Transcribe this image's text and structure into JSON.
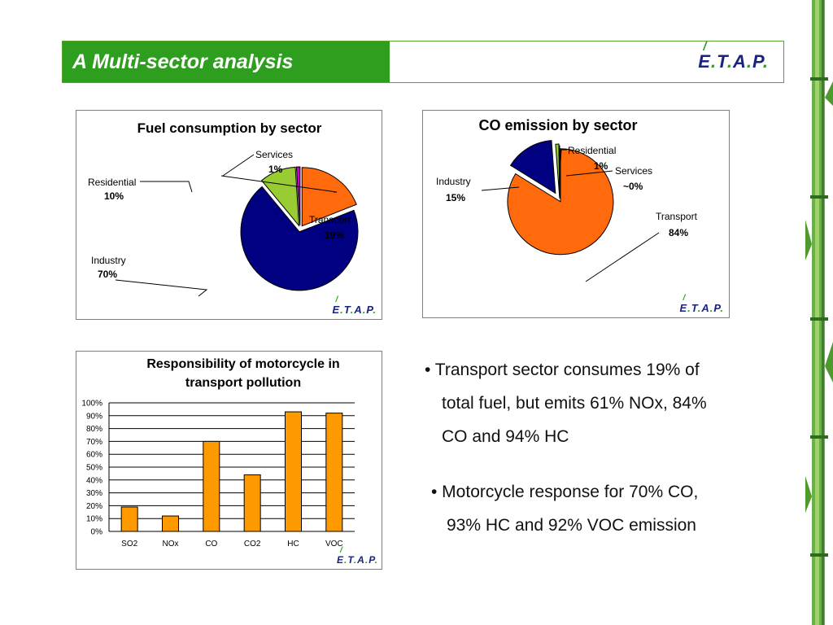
{
  "header": {
    "title": "A Multi-sector analysis",
    "logo": {
      "e": "E",
      "t": "T",
      "a": "A",
      "p": "P",
      "dot": ".",
      "accent": "/"
    }
  },
  "colors": {
    "header_green": "#2e9e1e",
    "logo_blue": "#1a237e",
    "transport": "#ff6a0d",
    "industry": "#000080",
    "residential": "#99cc33",
    "services": "#cc00cc",
    "bar": "#ff9900"
  },
  "chart_data": [
    {
      "type": "pie",
      "title": "Fuel consumption by sector",
      "slices": [
        {
          "label": "Transport",
          "value": 19,
          "value_label": "19%"
        },
        {
          "label": "Industry",
          "value": 70,
          "value_label": "70%"
        },
        {
          "label": "Residential",
          "value": 10,
          "value_label": "10%"
        },
        {
          "label": "Services",
          "value": 1,
          "value_label": "1%"
        }
      ]
    },
    {
      "type": "pie",
      "title": "CO emission by sector",
      "slices": [
        {
          "label": "Transport",
          "value": 84,
          "value_label": "84%"
        },
        {
          "label": "Industry",
          "value": 15,
          "value_label": "15%"
        },
        {
          "label": "Residential",
          "value": 1,
          "value_label": "1%"
        },
        {
          "label": "Services",
          "value": 0.2,
          "value_label": "~0%"
        }
      ]
    },
    {
      "type": "bar",
      "title_lines": [
        "Responsibility of motorcycle in",
        "transport pollution"
      ],
      "categories": [
        "SO2",
        "NOx",
        "CO",
        "CO2",
        "HC",
        "VOC"
      ],
      "values": [
        19,
        12,
        70,
        44,
        93,
        92
      ],
      "ylim": [
        0,
        100
      ],
      "y_ticks": [
        "0%",
        "10%",
        "20%",
        "30%",
        "40%",
        "50%",
        "60%",
        "70%",
        "80%",
        "90%",
        "100%"
      ],
      "grid": true
    }
  ],
  "bullets": [
    {
      "lines": [
        "• Transport sector consumes 19% of",
        "total fuel, but emits 61% NOx, 84%",
        "CO and 94% HC"
      ]
    },
    {
      "lines": [
        "• Motorcycle response for 70% CO,",
        "93% HC and 92% VOC emission"
      ]
    }
  ]
}
